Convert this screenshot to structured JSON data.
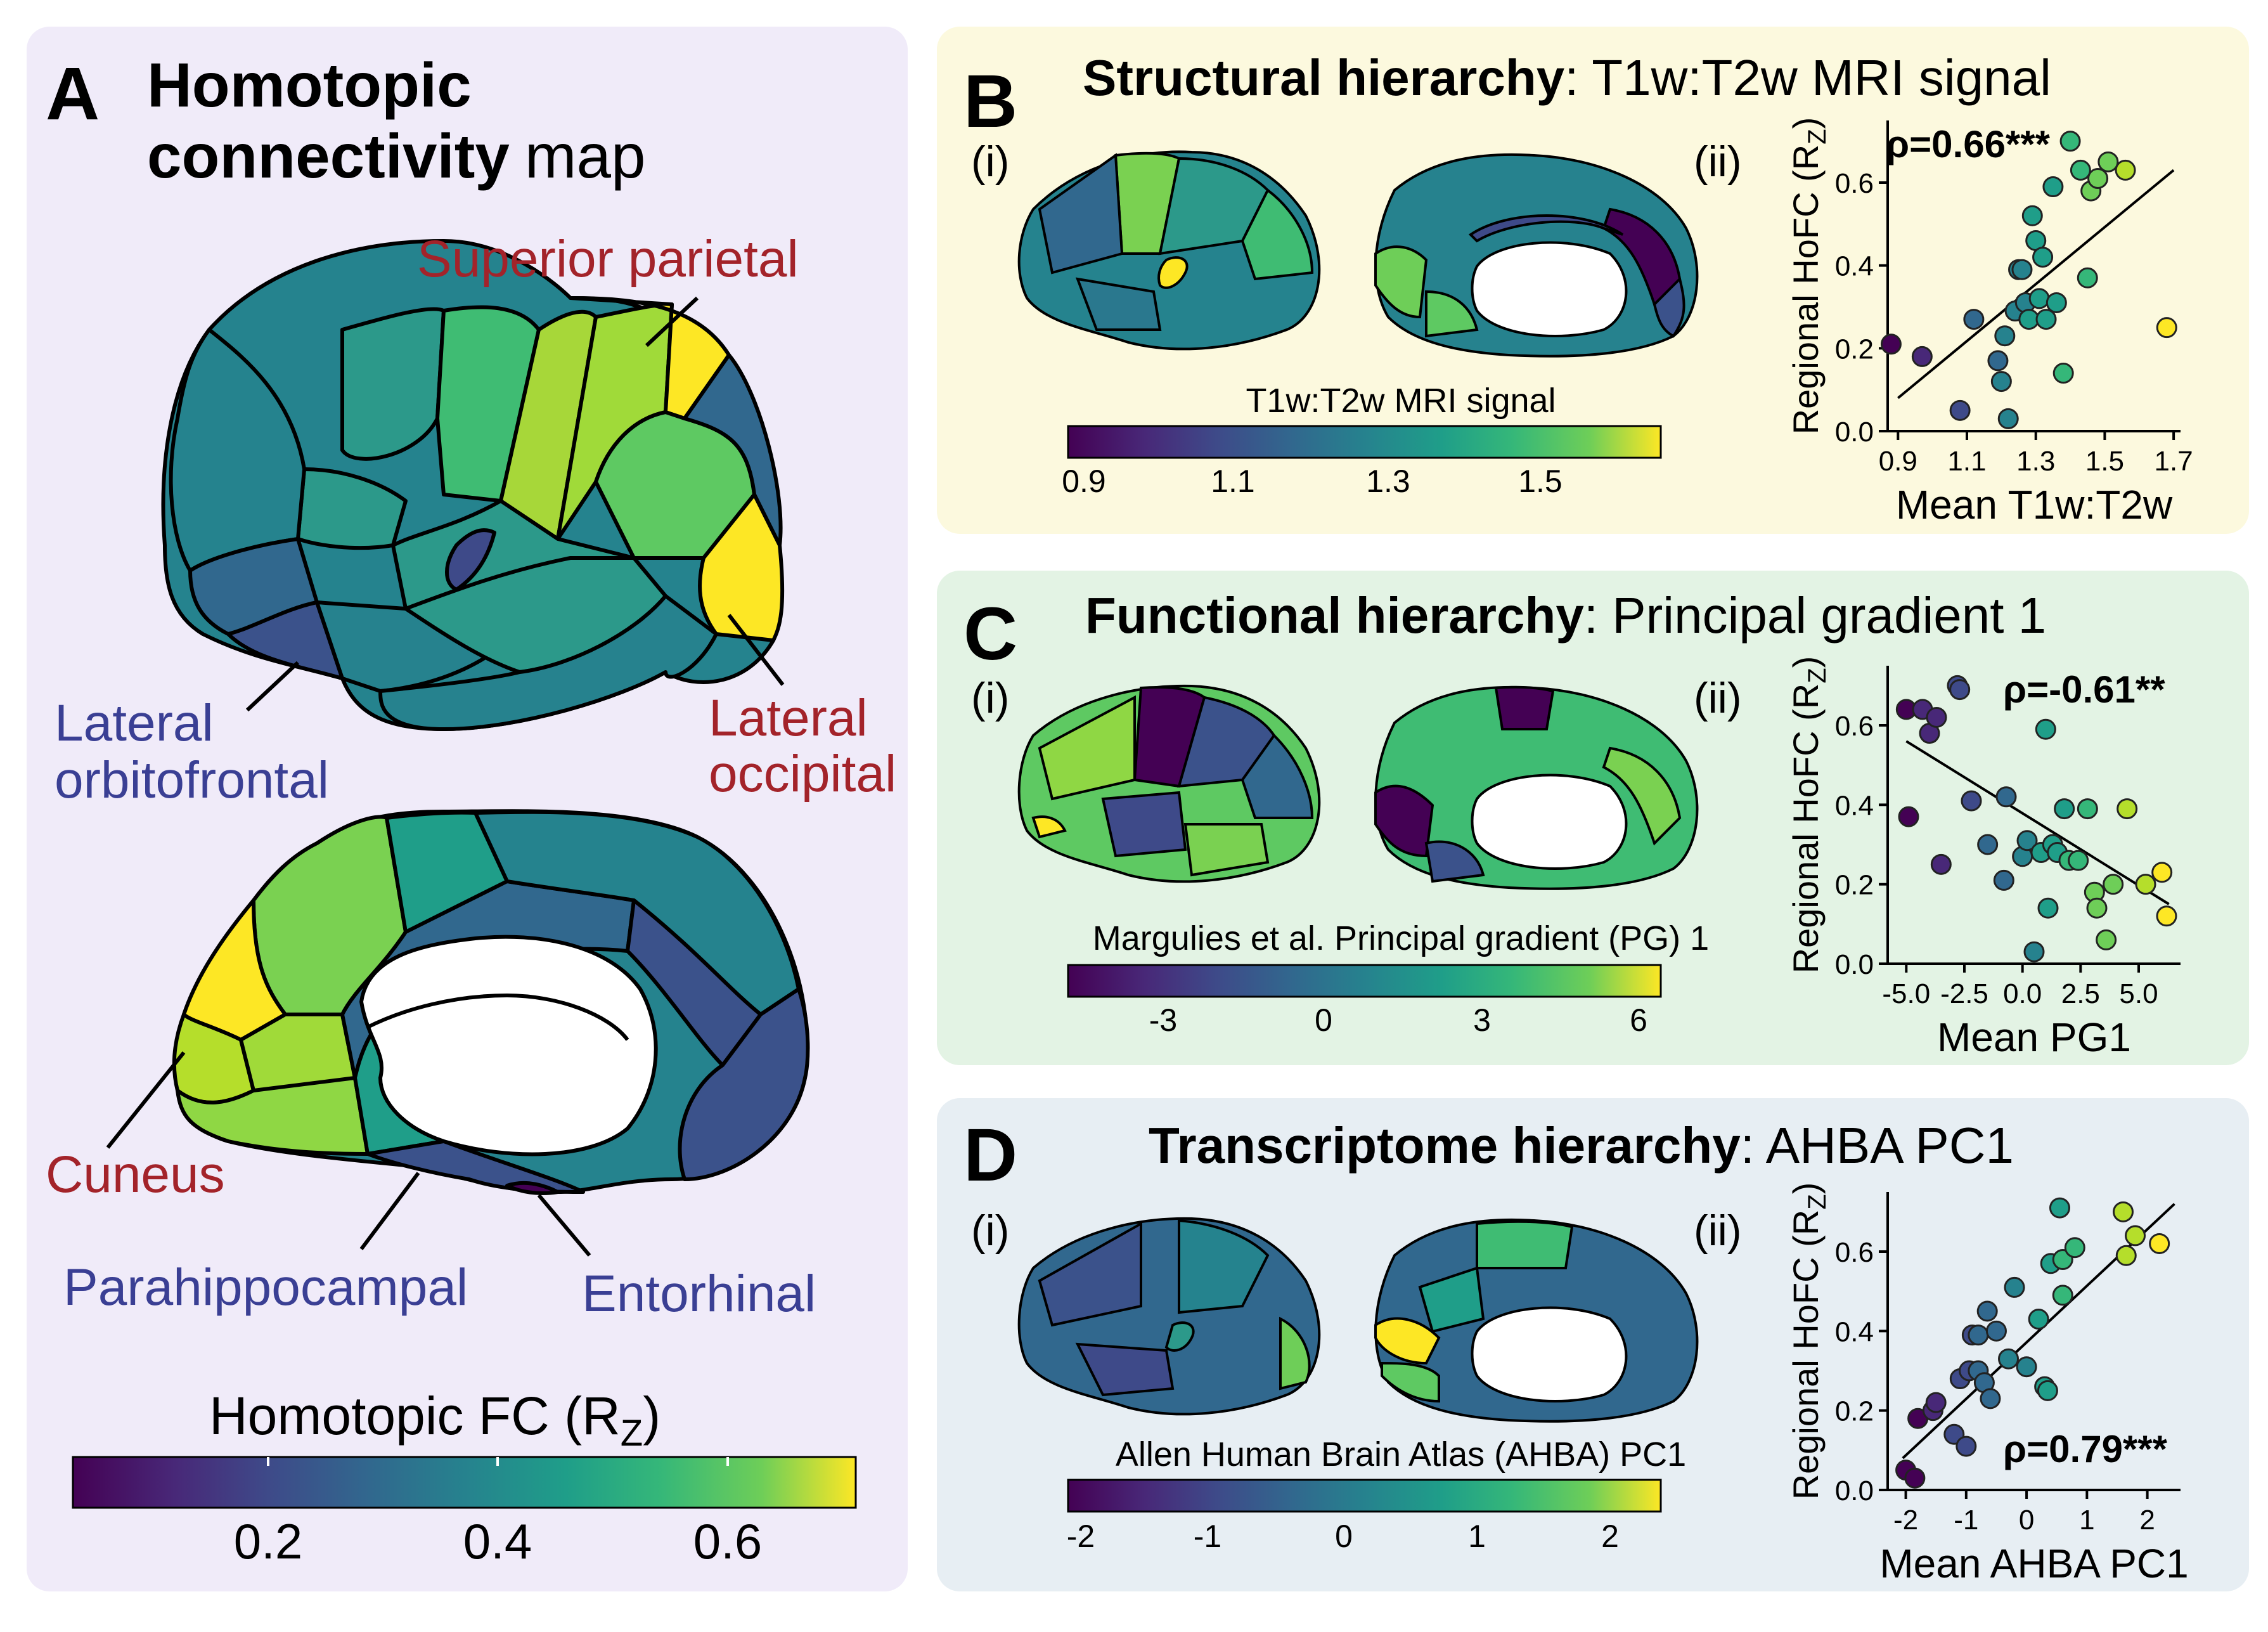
{
  "colors": {
    "panel_a_bg": "#f0ebf9",
    "panel_b_bg": "#fcf9de",
    "panel_c_bg": "#e3f3e4",
    "panel_d_bg": "#e7eef3",
    "label_red": "#a3232a",
    "label_blue": "#3a3f94",
    "viridis": [
      "#440154",
      "#3b528b",
      "#21918c",
      "#5ec962",
      "#fde725"
    ]
  },
  "panel_a": {
    "letter": "A",
    "title_line1": "Homotopic",
    "title_line2_bold": "connectivity",
    "title_line2_rest": "map",
    "labels": {
      "superior_parietal": "Superior parietal",
      "lateral_occipital_1": "Lateral",
      "lateral_occipital_2": "occipital",
      "lateral_orbitofrontal_1": "Lateral",
      "lateral_orbitofrontal_2": "orbitofrontal",
      "cuneus": "Cuneus",
      "parahippocampal": "Parahippocampal",
      "entorhinal": "Entorhinal"
    },
    "colorbar": {
      "title": "Homotopic FC (R",
      "title_sub": "Z",
      "title_end": ")",
      "ticks": [
        "0.2",
        "0.4",
        "0.6"
      ]
    }
  },
  "panel_b": {
    "letter": "B",
    "title_bold": "Structural hierarchy",
    "title_rest": ": T1w:T2w MRI signal",
    "sub_i": "(i)",
    "sub_ii": "(ii)",
    "colorbar": {
      "title": "T1w:T2w MRI signal",
      "ticks": [
        "0.9",
        "1.1",
        "1.3",
        "1.5"
      ]
    },
    "rho": "ρ=0.66***"
  },
  "panel_c": {
    "letter": "C",
    "title_bold": "Functional hierarchy",
    "title_rest": ": Principal gradient 1",
    "sub_i": "(i)",
    "sub_ii": "(ii)",
    "colorbar": {
      "title": "Margulies et al. Principal gradient (PG) 1",
      "ticks": [
        "-3",
        "0",
        "3",
        "6"
      ]
    },
    "rho": "ρ=-0.61**"
  },
  "panel_d": {
    "letter": "D",
    "title_bold": "Transcriptome hierarchy",
    "title_rest": ": AHBA PC1",
    "sub_i": "(i)",
    "sub_ii": "(ii)",
    "colorbar": {
      "title": "Allen Human Brain Atlas (AHBA) PC1",
      "ticks": [
        "-2",
        "-1",
        "0",
        "1",
        "2"
      ]
    },
    "rho": "ρ=0.79***"
  },
  "chart_data": [
    {
      "type": "scatter",
      "xlabel": "Mean T1w:T2w",
      "ylabel": "Regional HoFC (R",
      "ylabel_sub": "Z",
      "ylabel_end": ")",
      "xlim": [
        0.87,
        1.72
      ],
      "ylim": [
        0.0,
        0.75
      ],
      "xticks": [
        0.9,
        1.1,
        1.3,
        1.5,
        1.7
      ],
      "xtick_labels": [
        "0.9",
        "1.1",
        "1.3",
        "1.5",
        "1.7"
      ],
      "yticks": [
        0.0,
        0.2,
        0.4,
        0.6
      ],
      "ytick_labels": [
        "0.0",
        "0.2",
        "0.4",
        "0.6"
      ],
      "fit": {
        "x": [
          0.9,
          1.7
        ],
        "y": [
          0.08,
          0.63
        ]
      },
      "points": [
        {
          "x": 0.88,
          "y": 0.21
        },
        {
          "x": 0.97,
          "y": 0.18
        },
        {
          "x": 1.08,
          "y": 0.05
        },
        {
          "x": 1.12,
          "y": 0.27
        },
        {
          "x": 1.19,
          "y": 0.17
        },
        {
          "x": 1.2,
          "y": 0.12
        },
        {
          "x": 1.21,
          "y": 0.23
        },
        {
          "x": 1.22,
          "y": 0.03
        },
        {
          "x": 1.24,
          "y": 0.29
        },
        {
          "x": 1.25,
          "y": 0.39
        },
        {
          "x": 1.26,
          "y": 0.39
        },
        {
          "x": 1.27,
          "y": 0.31
        },
        {
          "x": 1.28,
          "y": 0.27
        },
        {
          "x": 1.29,
          "y": 0.52
        },
        {
          "x": 1.3,
          "y": 0.46
        },
        {
          "x": 1.31,
          "y": 0.32
        },
        {
          "x": 1.32,
          "y": 0.42
        },
        {
          "x": 1.33,
          "y": 0.27
        },
        {
          "x": 1.35,
          "y": 0.59
        },
        {
          "x": 1.36,
          "y": 0.31
        },
        {
          "x": 1.38,
          "y": 0.14
        },
        {
          "x": 1.4,
          "y": 0.7
        },
        {
          "x": 1.43,
          "y": 0.63
        },
        {
          "x": 1.45,
          "y": 0.37
        },
        {
          "x": 1.46,
          "y": 0.58
        },
        {
          "x": 1.48,
          "y": 0.61
        },
        {
          "x": 1.51,
          "y": 0.65
        },
        {
          "x": 1.56,
          "y": 0.63
        },
        {
          "x": 1.68,
          "y": 0.25
        }
      ]
    },
    {
      "type": "scatter",
      "xlabel": "Mean PG1",
      "ylabel": "Regional HoFC (R",
      "ylabel_sub": "Z",
      "ylabel_end": ")",
      "xlim": [
        -5.8,
        6.8
      ],
      "ylim": [
        0.0,
        0.75
      ],
      "xticks": [
        -5.0,
        -2.5,
        0.0,
        2.5,
        5.0
      ],
      "xtick_labels": [
        "-5.0",
        "-2.5",
        "0.0",
        "2.5",
        "5.0"
      ],
      "yticks": [
        0.0,
        0.2,
        0.4,
        0.6
      ],
      "ytick_labels": [
        "0.0",
        "0.2",
        "0.4",
        "0.6"
      ],
      "fit": {
        "x": [
          -5.0,
          6.3
        ],
        "y": [
          0.56,
          0.15
        ]
      },
      "points": [
        {
          "x": -5.0,
          "y": 0.64
        },
        {
          "x": -4.9,
          "y": 0.37
        },
        {
          "x": -4.3,
          "y": 0.64
        },
        {
          "x": -4.0,
          "y": 0.58
        },
        {
          "x": -3.7,
          "y": 0.62
        },
        {
          "x": -3.5,
          "y": 0.25
        },
        {
          "x": -2.8,
          "y": 0.7
        },
        {
          "x": -2.7,
          "y": 0.69
        },
        {
          "x": -2.2,
          "y": 0.41
        },
        {
          "x": -1.5,
          "y": 0.3
        },
        {
          "x": -0.8,
          "y": 0.21
        },
        {
          "x": -0.7,
          "y": 0.42
        },
        {
          "x": 0.0,
          "y": 0.27
        },
        {
          "x": 0.2,
          "y": 0.31
        },
        {
          "x": 0.5,
          "y": 0.03
        },
        {
          "x": 0.8,
          "y": 0.28
        },
        {
          "x": 1.0,
          "y": 0.59
        },
        {
          "x": 1.1,
          "y": 0.14
        },
        {
          "x": 1.3,
          "y": 0.3
        },
        {
          "x": 1.5,
          "y": 0.28
        },
        {
          "x": 1.8,
          "y": 0.39
        },
        {
          "x": 2.0,
          "y": 0.26
        },
        {
          "x": 2.4,
          "y": 0.26
        },
        {
          "x": 2.8,
          "y": 0.39
        },
        {
          "x": 3.1,
          "y": 0.18
        },
        {
          "x": 3.2,
          "y": 0.14
        },
        {
          "x": 3.6,
          "y": 0.06
        },
        {
          "x": 3.9,
          "y": 0.2
        },
        {
          "x": 4.5,
          "y": 0.39
        },
        {
          "x": 5.3,
          "y": 0.2
        },
        {
          "x": 6.0,
          "y": 0.23
        },
        {
          "x": 6.2,
          "y": 0.12
        }
      ]
    },
    {
      "type": "scatter",
      "xlabel": "Mean AHBA PC1",
      "ylabel": "Regional HoFC (R",
      "ylabel_sub": "Z",
      "ylabel_end": ")",
      "xlim": [
        -2.3,
        2.55
      ],
      "ylim": [
        0.0,
        0.75
      ],
      "xticks": [
        -2,
        -1,
        0,
        1,
        2
      ],
      "xtick_labels": [
        "-2",
        "-1",
        "0",
        "1",
        "2"
      ],
      "yticks": [
        0.0,
        0.2,
        0.4,
        0.6
      ],
      "ytick_labels": [
        "0.0",
        "0.2",
        "0.4",
        "0.6"
      ],
      "fit": {
        "x": [
          -2.05,
          2.45
        ],
        "y": [
          0.08,
          0.72
        ]
      },
      "points": [
        {
          "x": -2.0,
          "y": 0.05
        },
        {
          "x": -1.85,
          "y": 0.03
        },
        {
          "x": -1.8,
          "y": 0.18
        },
        {
          "x": -1.55,
          "y": 0.2
        },
        {
          "x": -1.5,
          "y": 0.22
        },
        {
          "x": -1.2,
          "y": 0.14
        },
        {
          "x": -1.1,
          "y": 0.28
        },
        {
          "x": -1.0,
          "y": 0.11
        },
        {
          "x": -0.95,
          "y": 0.3
        },
        {
          "x": -0.9,
          "y": 0.39
        },
        {
          "x": -0.8,
          "y": 0.39
        },
        {
          "x": -0.8,
          "y": 0.3
        },
        {
          "x": -0.7,
          "y": 0.27
        },
        {
          "x": -0.65,
          "y": 0.45
        },
        {
          "x": -0.6,
          "y": 0.23
        },
        {
          "x": -0.5,
          "y": 0.4
        },
        {
          "x": -0.3,
          "y": 0.33
        },
        {
          "x": -0.2,
          "y": 0.51
        },
        {
          "x": 0.0,
          "y": 0.31
        },
        {
          "x": 0.2,
          "y": 0.43
        },
        {
          "x": 0.3,
          "y": 0.26
        },
        {
          "x": 0.35,
          "y": 0.25
        },
        {
          "x": 0.4,
          "y": 0.57
        },
        {
          "x": 0.55,
          "y": 0.71
        },
        {
          "x": 0.6,
          "y": 0.58
        },
        {
          "x": 0.6,
          "y": 0.49
        },
        {
          "x": 0.8,
          "y": 0.61
        },
        {
          "x": 1.6,
          "y": 0.7
        },
        {
          "x": 1.65,
          "y": 0.59
        },
        {
          "x": 1.8,
          "y": 0.64
        },
        {
          "x": 2.2,
          "y": 0.62
        }
      ]
    }
  ]
}
